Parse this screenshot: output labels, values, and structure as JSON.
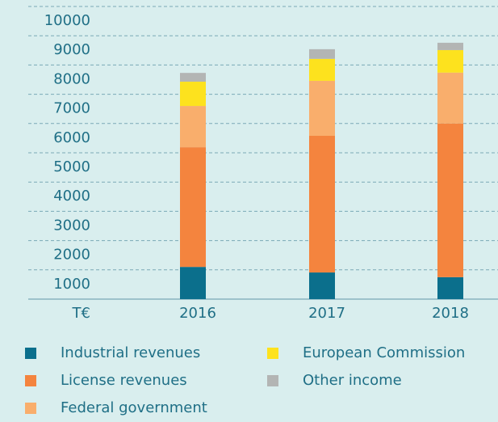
{
  "chart_data": {
    "type": "stacked_bar",
    "y_axis_label": "T€",
    "categories": [
      "2016",
      "2017",
      "2018"
    ],
    "series": [
      {
        "name": "Industrial revenues",
        "color": "#0b6f8c",
        "values": [
          1100,
          910,
          750
        ]
      },
      {
        "name": "License revenues",
        "color": "#f4843e",
        "values": [
          4090,
          4670,
          5250
        ]
      },
      {
        "name": "Federal government",
        "color": "#f9ae6c",
        "values": [
          1410,
          1880,
          1740
        ]
      },
      {
        "name": "European Commission",
        "color": "#fde21e",
        "values": [
          830,
          750,
          770
        ]
      },
      {
        "name": "Other income",
        "color": "#b3b5b4",
        "values": [
          300,
          330,
          250
        ]
      }
    ],
    "ylim": [
      0,
      10000
    ],
    "yticks": [
      1000,
      2000,
      3000,
      4000,
      5000,
      6000,
      7000,
      8000,
      9000,
      10000
    ],
    "grid": true
  }
}
